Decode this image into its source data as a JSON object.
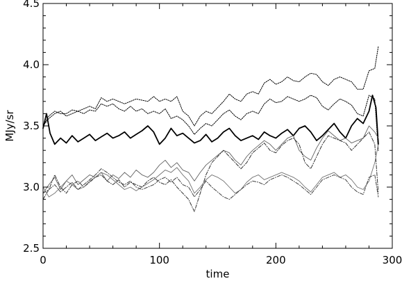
{
  "chart_data": {
    "type": "line",
    "title": "",
    "xlabel": "time",
    "ylabel": "MJy/sr",
    "xlim": [
      0,
      300
    ],
    "ylim": [
      2.5,
      4.5
    ],
    "grid": false,
    "x_ticks": [
      0,
      100,
      200,
      300
    ],
    "x_tick_labels": [
      "0",
      "100",
      "200",
      "300"
    ],
    "y_ticks": [
      2.5,
      3.0,
      3.5,
      4.0,
      4.5
    ],
    "y_tick_labels": [
      "2.5",
      "3.0",
      "3.5",
      "4.0",
      "4.5"
    ],
    "series": [
      {
        "style": "solid-thick",
        "color": "#000000",
        "x": [
          0,
          3,
          6,
          10,
          15,
          20,
          25,
          30,
          35,
          40,
          45,
          50,
          55,
          60,
          65,
          70,
          75,
          80,
          85,
          90,
          95,
          100,
          105,
          110,
          115,
          120,
          125,
          130,
          135,
          140,
          145,
          150,
          155,
          160,
          165,
          170,
          175,
          180,
          185,
          190,
          195,
          200,
          205,
          210,
          215,
          220,
          225,
          230,
          235,
          240,
          245,
          250,
          255,
          260,
          265,
          270,
          275,
          280,
          283,
          286,
          288
        ],
        "y": [
          3.48,
          3.6,
          3.44,
          3.35,
          3.4,
          3.36,
          3.42,
          3.37,
          3.4,
          3.43,
          3.38,
          3.41,
          3.44,
          3.4,
          3.42,
          3.45,
          3.4,
          3.43,
          3.46,
          3.5,
          3.45,
          3.35,
          3.4,
          3.48,
          3.42,
          3.44,
          3.4,
          3.36,
          3.38,
          3.43,
          3.37,
          3.4,
          3.45,
          3.48,
          3.42,
          3.38,
          3.4,
          3.42,
          3.39,
          3.45,
          3.42,
          3.4,
          3.44,
          3.47,
          3.42,
          3.48,
          3.5,
          3.45,
          3.38,
          3.42,
          3.47,
          3.52,
          3.45,
          3.4,
          3.5,
          3.56,
          3.52,
          3.62,
          3.75,
          3.65,
          3.35
        ]
      },
      {
        "style": "dotted",
        "color": "#000000",
        "x": [
          0,
          5,
          10,
          15,
          20,
          25,
          30,
          35,
          40,
          45,
          50,
          55,
          60,
          65,
          70,
          75,
          80,
          85,
          90,
          95,
          100,
          105,
          110,
          115,
          120,
          125,
          130,
          135,
          140,
          145,
          150,
          155,
          160,
          165,
          170,
          175,
          180,
          185,
          190,
          195,
          200,
          205,
          210,
          215,
          220,
          225,
          230,
          235,
          240,
          245,
          250,
          255,
          260,
          265,
          270,
          275,
          280,
          285,
          288
        ],
        "y": [
          3.5,
          3.58,
          3.62,
          3.6,
          3.6,
          3.63,
          3.62,
          3.64,
          3.66,
          3.64,
          3.73,
          3.7,
          3.72,
          3.7,
          3.68,
          3.7,
          3.72,
          3.71,
          3.7,
          3.74,
          3.7,
          3.72,
          3.7,
          3.74,
          3.62,
          3.58,
          3.5,
          3.58,
          3.62,
          3.6,
          3.65,
          3.7,
          3.76,
          3.72,
          3.7,
          3.76,
          3.78,
          3.76,
          3.85,
          3.88,
          3.84,
          3.86,
          3.9,
          3.87,
          3.86,
          3.9,
          3.93,
          3.92,
          3.86,
          3.83,
          3.88,
          3.9,
          3.88,
          3.86,
          3.8,
          3.8,
          3.95,
          3.97,
          4.15
        ]
      },
      {
        "style": "dotted",
        "color": "#000000",
        "x": [
          0,
          5,
          10,
          15,
          20,
          25,
          30,
          35,
          40,
          45,
          50,
          55,
          60,
          65,
          70,
          75,
          80,
          85,
          90,
          95,
          100,
          105,
          110,
          115,
          120,
          125,
          130,
          135,
          140,
          145,
          150,
          155,
          160,
          165,
          170,
          175,
          180,
          185,
          190,
          195,
          200,
          205,
          210,
          215,
          220,
          225,
          230,
          235,
          240,
          245,
          250,
          255,
          260,
          265,
          270,
          275,
          280,
          285,
          288
        ],
        "y": [
          3.5,
          3.56,
          3.6,
          3.62,
          3.58,
          3.6,
          3.62,
          3.6,
          3.63,
          3.62,
          3.68,
          3.66,
          3.68,
          3.64,
          3.62,
          3.66,
          3.62,
          3.64,
          3.6,
          3.62,
          3.6,
          3.64,
          3.56,
          3.58,
          3.55,
          3.5,
          3.43,
          3.48,
          3.52,
          3.5,
          3.55,
          3.6,
          3.63,
          3.58,
          3.55,
          3.6,
          3.62,
          3.6,
          3.68,
          3.72,
          3.69,
          3.7,
          3.74,
          3.72,
          3.7,
          3.72,
          3.75,
          3.73,
          3.66,
          3.63,
          3.68,
          3.72,
          3.7,
          3.67,
          3.6,
          3.58,
          3.75,
          3.72,
          3.3
        ]
      },
      {
        "style": "solid-thin-gray",
        "color": "#606060",
        "x": [
          0,
          5,
          10,
          15,
          20,
          25,
          30,
          35,
          40,
          45,
          50,
          55,
          60,
          65,
          70,
          75,
          80,
          85,
          90,
          95,
          100,
          105,
          110,
          115,
          120,
          125,
          130,
          135,
          140,
          145,
          150,
          155,
          160,
          165,
          170,
          175,
          180,
          185,
          190,
          195,
          200,
          205,
          210,
          215,
          220,
          225,
          230,
          235,
          240,
          245,
          250,
          255,
          260,
          265,
          270,
          275,
          280,
          285,
          288
        ],
        "y": [
          2.95,
          3.02,
          3.08,
          2.98,
          3.05,
          3.1,
          3.02,
          3.06,
          3.1,
          3.08,
          3.12,
          3.05,
          3.1,
          3.07,
          3.12,
          3.08,
          3.14,
          3.1,
          3.08,
          3.12,
          3.18,
          3.22,
          3.16,
          3.2,
          3.14,
          3.12,
          3.05,
          3.12,
          3.18,
          3.22,
          3.26,
          3.3,
          3.28,
          3.22,
          3.18,
          3.25,
          3.3,
          3.34,
          3.38,
          3.35,
          3.3,
          3.35,
          3.4,
          3.42,
          3.3,
          3.25,
          3.22,
          3.32,
          3.4,
          3.46,
          3.42,
          3.38,
          3.4,
          3.36,
          3.38,
          3.4,
          3.5,
          3.45,
          3.4
        ]
      },
      {
        "style": "dash-dot",
        "color": "#303030",
        "x": [
          0,
          5,
          10,
          15,
          20,
          25,
          30,
          35,
          40,
          45,
          50,
          55,
          60,
          65,
          70,
          75,
          80,
          85,
          90,
          95,
          100,
          105,
          110,
          115,
          120,
          125,
          130,
          135,
          140,
          145,
          150,
          155,
          160,
          165,
          170,
          175,
          180,
          185,
          190,
          195,
          200,
          205,
          210,
          215,
          220,
          225,
          230,
          235,
          240,
          245,
          250,
          255,
          260,
          265,
          270,
          275,
          280,
          285,
          288
        ],
        "y": [
          2.9,
          2.98,
          3.1,
          3.0,
          2.95,
          3.02,
          3.05,
          3.0,
          3.04,
          3.08,
          3.1,
          3.05,
          3.02,
          3.06,
          3.0,
          3.04,
          3.02,
          3.0,
          3.05,
          3.08,
          3.04,
          3.02,
          3.06,
          3.0,
          2.95,
          2.9,
          2.8,
          2.95,
          3.1,
          3.2,
          3.25,
          3.3,
          3.25,
          3.2,
          3.15,
          3.2,
          3.28,
          3.32,
          3.36,
          3.3,
          3.28,
          3.34,
          3.38,
          3.4,
          3.35,
          3.2,
          3.15,
          3.25,
          3.35,
          3.42,
          3.4,
          3.38,
          3.36,
          3.3,
          3.35,
          3.4,
          3.45,
          3.35,
          2.95
        ]
      },
      {
        "style": "solid-thin-gray",
        "color": "#707070",
        "x": [
          0,
          5,
          10,
          15,
          20,
          25,
          30,
          35,
          40,
          45,
          50,
          55,
          60,
          65,
          70,
          75,
          80,
          85,
          90,
          95,
          100,
          105,
          110,
          115,
          120,
          125,
          130,
          135,
          140,
          145,
          150,
          155,
          160,
          165,
          170,
          175,
          180,
          185,
          190,
          195,
          200,
          205,
          210,
          215,
          220,
          225,
          230,
          235,
          240,
          245,
          250,
          255,
          260,
          265,
          270,
          275,
          280,
          285,
          288
        ],
        "y": [
          3.0,
          2.92,
          2.95,
          3.0,
          3.05,
          3.02,
          2.98,
          3.0,
          3.05,
          3.08,
          3.12,
          3.1,
          3.06,
          3.02,
          2.98,
          3.0,
          2.97,
          3.0,
          3.03,
          3.06,
          3.1,
          3.14,
          3.12,
          3.16,
          3.1,
          3.05,
          2.95,
          3.0,
          3.06,
          3.1,
          3.08,
          3.05,
          3.0,
          2.95,
          2.98,
          3.04,
          3.08,
          3.1,
          3.06,
          3.08,
          3.1,
          3.12,
          3.1,
          3.08,
          3.05,
          3.0,
          2.96,
          3.02,
          3.08,
          3.1,
          3.12,
          3.08,
          3.1,
          3.06,
          3.0,
          2.98,
          3.05,
          3.2,
          3.35
        ]
      },
      {
        "style": "dash-dot",
        "color": "#404040",
        "x": [
          0,
          5,
          10,
          15,
          20,
          25,
          30,
          35,
          40,
          45,
          50,
          55,
          60,
          65,
          70,
          75,
          80,
          85,
          90,
          95,
          100,
          105,
          110,
          115,
          120,
          125,
          130,
          135,
          140,
          145,
          150,
          155,
          160,
          165,
          170,
          175,
          180,
          185,
          190,
          195,
          200,
          205,
          210,
          215,
          220,
          225,
          230,
          235,
          240,
          245,
          250,
          255,
          260,
          265,
          270,
          275,
          280,
          285,
          288
        ],
        "y": [
          2.95,
          2.98,
          3.02,
          2.96,
          3.0,
          3.04,
          2.98,
          3.02,
          3.06,
          3.1,
          3.15,
          3.12,
          3.08,
          3.04,
          3.02,
          3.05,
          3.0,
          2.98,
          3.0,
          3.02,
          3.06,
          3.08,
          3.04,
          3.08,
          3.02,
          3.0,
          2.92,
          2.98,
          3.05,
          3.0,
          2.96,
          2.92,
          2.9,
          2.94,
          2.98,
          3.02,
          3.05,
          3.04,
          3.02,
          3.06,
          3.08,
          3.1,
          3.08,
          3.05,
          3.02,
          2.98,
          2.94,
          3.0,
          3.06,
          3.08,
          3.1,
          3.08,
          3.06,
          3.0,
          2.96,
          2.94,
          3.08,
          3.1,
          2.92
        ]
      }
    ]
  }
}
